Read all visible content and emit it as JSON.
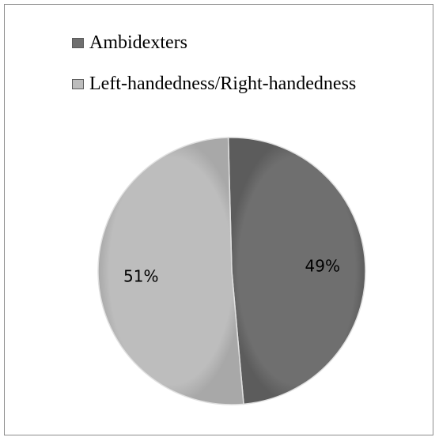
{
  "chart_data": {
    "type": "pie",
    "title": "",
    "categories": [
      "Ambidexters",
      "Left-handedness/Right-handedness"
    ],
    "values": [
      49,
      51
    ],
    "data_labels": [
      "49%",
      "51%"
    ],
    "colors": [
      "#6f6f6f",
      "#bdbdbd"
    ],
    "edge_color": "#e0e0e0",
    "start_angle_deg": -90,
    "direction": "clockwise",
    "legend_position": "top-left"
  }
}
